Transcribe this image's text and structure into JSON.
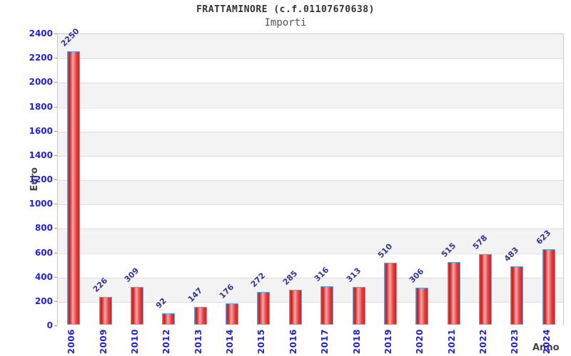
{
  "title": "FRATTAMINORE (c.f.01107670638)",
  "subtitle": "Importi",
  "chart_data": {
    "type": "bar",
    "title": "FRATTAMINORE (c.f.01107670638)",
    "subtitle": "Importi",
    "categories": [
      "2006",
      "2009",
      "2010",
      "2012",
      "2013",
      "2014",
      "2015",
      "2016",
      "2017",
      "2018",
      "2019",
      "2020",
      "2021",
      "2022",
      "2023",
      "2024"
    ],
    "values": [
      2250,
      226,
      309,
      92,
      147,
      176,
      272,
      285,
      316,
      313,
      510,
      306,
      515,
      578,
      483,
      623
    ],
    "xlabel": "Anno",
    "ylabel": "Euro",
    "ylim": [
      0,
      2400
    ],
    "ytick_step": 200,
    "ytick_labels": [
      "0",
      "200",
      "400",
      "600",
      "800",
      "1000",
      "1200",
      "1400",
      "1600",
      "1800",
      "2000",
      "2200",
      "2400"
    ],
    "grid": true,
    "legend": false,
    "value_labels_rotation_deg": -45,
    "xtick_rotation_deg": -90
  },
  "colors": {
    "bar_fill_dark": "#c41f1f",
    "bar_fill_highlight": "#f5a8a8",
    "bar_fill_edge": "#e04545",
    "bar_border": "#64a2e0",
    "axis_tick_label": "#2222dd",
    "value_label": "#333399",
    "band_gray": "#f3f3f3",
    "band_white": "#ffffff",
    "gridline": "#dddddd",
    "plot_border": "#c9c9c9",
    "tick_mark": "#999999",
    "title_color": "#333333",
    "subtitle_color": "#555555",
    "axis_name_color": "#444444"
  }
}
